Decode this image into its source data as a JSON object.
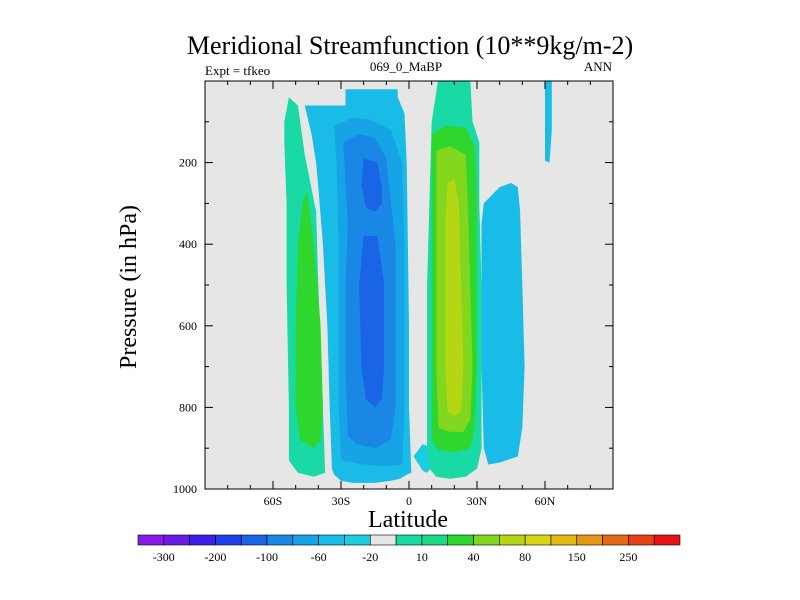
{
  "chart_data": {
    "type": "contour",
    "title": "Meridional Streamfunction (10**9kg/m-2)",
    "subtitle_left": "Expt = tfkeo",
    "subtitle_center": "069_0_MaBP",
    "subtitle_right": "ANN",
    "xlabel": "Latitude",
    "ylabel": "Pressure (in hPa)",
    "xlim": [
      -90,
      90
    ],
    "ylim": [
      1000,
      0
    ],
    "y_reversed": true,
    "x_ticks": [
      {
        "value": -60,
        "label": "60S"
      },
      {
        "value": -30,
        "label": "30S"
      },
      {
        "value": 0,
        "label": "0"
      },
      {
        "value": 30,
        "label": "30N"
      },
      {
        "value": 60,
        "label": "60N"
      }
    ],
    "y_ticks": [
      {
        "value": 200,
        "label": "200"
      },
      {
        "value": 400,
        "label": "400"
      },
      {
        "value": 600,
        "label": "600"
      },
      {
        "value": 800,
        "label": "800"
      },
      {
        "value": 1000,
        "label": "1000"
      }
    ],
    "background_color": "#e6e6e6",
    "colorbar": {
      "levels": [
        "-300",
        "-200",
        "-100",
        "-60",
        "-20",
        "10",
        "40",
        "80",
        "150",
        "250"
      ],
      "colors": [
        "#8a1ae6",
        "#6a1ae6",
        "#3c1ee6",
        "#2040e6",
        "#1a64e6",
        "#1a86e6",
        "#16a4e6",
        "#19bce6",
        "#1ccce0",
        "#e6e6e6",
        "#19d9a4",
        "#1ed986",
        "#2ed62e",
        "#82d61e",
        "#b4d614",
        "#d6d614",
        "#e6b814",
        "#e69614",
        "#e66a14",
        "#e64014",
        "#e61414"
      ]
    },
    "regions": [
      {
        "color": "#19d9a4",
        "points": [
          [
            -53,
            40
          ],
          [
            -49,
            60
          ],
          [
            -46,
            180
          ],
          [
            -41,
            320
          ],
          [
            -40,
            500
          ],
          [
            -38,
            800
          ],
          [
            -37,
            960
          ],
          [
            -42,
            970
          ],
          [
            -49,
            960
          ],
          [
            -53,
            930
          ],
          [
            -53,
            800
          ],
          [
            -54,
            500
          ],
          [
            -54,
            300
          ],
          [
            -55,
            150
          ],
          [
            -55,
            100
          ]
        ]
      },
      {
        "color": "#2ed62e",
        "points": [
          [
            -45,
            270
          ],
          [
            -42,
            400
          ],
          [
            -39,
            600
          ],
          [
            -38,
            800
          ],
          [
            -39,
            880
          ],
          [
            -42,
            900
          ],
          [
            -48,
            880
          ],
          [
            -50,
            800
          ],
          [
            -50,
            600
          ],
          [
            -49,
            400
          ],
          [
            -47,
            300
          ]
        ]
      },
      {
        "color": "#19bce6",
        "points": [
          [
            -46,
            60
          ],
          [
            -28,
            60
          ],
          [
            -28,
            20
          ],
          [
            -5,
            20
          ],
          [
            -5,
            40
          ],
          [
            -2,
            80
          ],
          [
            -1,
            200
          ],
          [
            -0.5,
            400
          ],
          [
            0,
            600
          ],
          [
            0,
            800
          ],
          [
            1,
            960
          ],
          [
            -1,
            965
          ],
          [
            -4,
            975
          ],
          [
            -8,
            980
          ],
          [
            -15,
            985
          ],
          [
            -25,
            985
          ],
          [
            -30,
            980
          ],
          [
            -33,
            965
          ],
          [
            -34,
            950
          ],
          [
            -35,
            800
          ],
          [
            -36,
            600
          ],
          [
            -38,
            400
          ],
          [
            -40,
            260
          ],
          [
            -41,
            200
          ],
          [
            -43,
            130
          ]
        ]
      },
      {
        "color": "#16a4e6",
        "points": [
          [
            -33,
            110
          ],
          [
            -25,
            90
          ],
          [
            -17,
            95
          ],
          [
            -8,
            120
          ],
          [
            -3,
            200
          ],
          [
            -2,
            400
          ],
          [
            -2,
            600
          ],
          [
            -2,
            800
          ],
          [
            -3,
            940
          ],
          [
            -10,
            945
          ],
          [
            -20,
            940
          ],
          [
            -30,
            930
          ],
          [
            -31,
            800
          ],
          [
            -31,
            600
          ],
          [
            -31,
            400
          ],
          [
            -32,
            200
          ]
        ]
      },
      {
        "color": "#1a86e6",
        "points": [
          [
            -29,
            150
          ],
          [
            -22,
            130
          ],
          [
            -15,
            140
          ],
          [
            -10,
            190
          ],
          [
            -6,
            400
          ],
          [
            -6,
            600
          ],
          [
            -6,
            800
          ],
          [
            -8,
            880
          ],
          [
            -15,
            900
          ],
          [
            -23,
            890
          ],
          [
            -27,
            870
          ],
          [
            -28,
            700
          ],
          [
            -28,
            500
          ],
          [
            -27,
            350
          ],
          [
            -28,
            250
          ]
        ]
      },
      {
        "color": "#1a64e6",
        "points": [
          [
            -20,
            190
          ],
          [
            -14,
            200
          ],
          [
            -12,
            260
          ],
          [
            -12,
            300
          ],
          [
            -15,
            320
          ],
          [
            -19,
            310
          ],
          [
            -21,
            250
          ]
        ]
      },
      {
        "color": "#1a64e6",
        "points": [
          [
            -20,
            380
          ],
          [
            -14,
            380
          ],
          [
            -11,
            500
          ],
          [
            -11,
            700
          ],
          [
            -12,
            780
          ],
          [
            -15,
            800
          ],
          [
            -19,
            780
          ],
          [
            -21,
            700
          ],
          [
            -22,
            500
          ]
        ]
      },
      {
        "color": "#19bce6",
        "points": [
          [
            60,
            -10
          ],
          [
            63,
            -10
          ],
          [
            63,
            120
          ],
          [
            62,
            200
          ],
          [
            60,
            195
          ],
          [
            60,
            120
          ]
        ]
      },
      {
        "color": "#19bce6",
        "points": [
          [
            33,
            300
          ],
          [
            40,
            260
          ],
          [
            45,
            250
          ],
          [
            48,
            260
          ],
          [
            49,
            320
          ],
          [
            50,
            500
          ],
          [
            51,
            700
          ],
          [
            50,
            850
          ],
          [
            48,
            920
          ],
          [
            40,
            935
          ],
          [
            35,
            940
          ],
          [
            33,
            900
          ],
          [
            32,
            700
          ],
          [
            32,
            500
          ],
          [
            32,
            350
          ]
        ]
      },
      {
        "color": "#1ccce0",
        "points": [
          [
            2,
            920
          ],
          [
            6,
            955
          ],
          [
            8,
            960
          ],
          [
            10,
            945
          ],
          [
            10,
            900
          ],
          [
            6,
            890
          ]
        ]
      },
      {
        "color": "#19d9a4",
        "points": [
          [
            13,
            -10
          ],
          [
            27,
            -10
          ],
          [
            28,
            100
          ],
          [
            31,
            150
          ],
          [
            31,
            300
          ],
          [
            32,
            500
          ],
          [
            32,
            700
          ],
          [
            32,
            900
          ],
          [
            30,
            950
          ],
          [
            25,
            970
          ],
          [
            18,
            975
          ],
          [
            12,
            970
          ],
          [
            9,
            950
          ],
          [
            8,
            900
          ],
          [
            8,
            700
          ],
          [
            8,
            500
          ],
          [
            9,
            300
          ],
          [
            10,
            100
          ]
        ]
      },
      {
        "color": "#2ed62e",
        "points": [
          [
            10,
            130
          ],
          [
            16,
            110
          ],
          [
            25,
            115
          ],
          [
            29,
            160
          ],
          [
            30,
            300
          ],
          [
            30,
            500
          ],
          [
            30,
            700
          ],
          [
            29,
            850
          ],
          [
            27,
            900
          ],
          [
            20,
            910
          ],
          [
            13,
            905
          ],
          [
            10,
            880
          ],
          [
            10,
            700
          ],
          [
            10,
            500
          ],
          [
            10,
            300
          ]
        ]
      },
      {
        "color": "#82d61e",
        "points": [
          [
            12,
            170
          ],
          [
            18,
            160
          ],
          [
            25,
            180
          ],
          [
            26,
            300
          ],
          [
            27,
            500
          ],
          [
            28,
            700
          ],
          [
            27,
            830
          ],
          [
            24,
            860
          ],
          [
            18,
            860
          ],
          [
            13,
            850
          ],
          [
            12,
            700
          ],
          [
            12,
            500
          ],
          [
            12,
            300
          ]
        ]
      },
      {
        "color": "#b4d614",
        "points": [
          [
            17,
            250
          ],
          [
            20,
            240
          ],
          [
            22,
            300
          ],
          [
            23,
            500
          ],
          [
            24,
            700
          ],
          [
            23,
            810
          ],
          [
            20,
            820
          ],
          [
            17,
            810
          ],
          [
            16,
            700
          ],
          [
            16,
            500
          ],
          [
            16,
            350
          ]
        ]
      }
    ]
  }
}
